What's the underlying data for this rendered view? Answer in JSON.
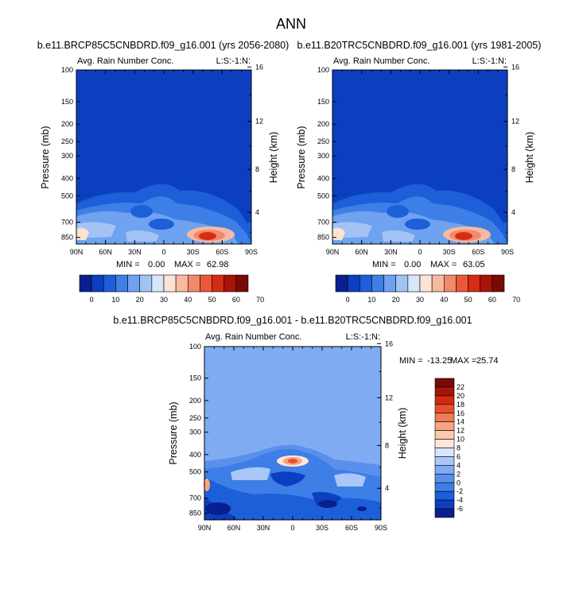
{
  "chart_data": {
    "type": "heatmap",
    "title": "ANN",
    "panels": [
      {
        "id": "p1",
        "title": "b.e11.BRCP85C5CNBDRD.f09_g16.001 (yrs 2056-2080)",
        "left_label": "Avg. Rain Number Conc.",
        "right_label": "L:S:-1:N:",
        "ylabel": "Pressure (mb)",
        "y2label": "Height (km)",
        "x_ticks": [
          "90N",
          "60N",
          "30N",
          "0",
          "30S",
          "60S",
          "90S"
        ],
        "y_ticks": [
          "100",
          "150",
          "200",
          "250",
          "300",
          "400",
          "500",
          "700",
          "850"
        ],
        "y2_ticks": [
          "16",
          "12",
          "8",
          "4"
        ],
        "min_label": "MIN =",
        "min_value": "0.00",
        "max_label": "MAX =",
        "max_value": "62.98",
        "colorbar_ticks": [
          "0",
          "10",
          "20",
          "30",
          "40",
          "50",
          "60",
          "70"
        ],
        "colorbar_orientation": "horizontal"
      },
      {
        "id": "p2",
        "title": "b.e11.B20TRC5CNBDRD.f09_g16.001 (yrs 1981-2005)",
        "left_label": "Avg. Rain Number Conc.",
        "right_label": "L:S:-1:N:",
        "ylabel": "Pressure (mb)",
        "y2label": "Height (km)",
        "x_ticks": [
          "90N",
          "60N",
          "30N",
          "0",
          "30S",
          "60S",
          "90S"
        ],
        "y_ticks": [
          "100",
          "150",
          "200",
          "250",
          "300",
          "400",
          "500",
          "700",
          "850"
        ],
        "y2_ticks": [
          "16",
          "12",
          "8",
          "4"
        ],
        "min_label": "MIN =",
        "min_value": "0.00",
        "max_label": "MAX =",
        "max_value": "63.05",
        "colorbar_ticks": [
          "0",
          "10",
          "20",
          "30",
          "40",
          "50",
          "60",
          "70"
        ],
        "colorbar_orientation": "horizontal"
      },
      {
        "id": "p3",
        "title": "b.e11.BRCP85C5CNBDRD.f09_g16.001 - b.e11.B20TRC5CNBDRD.f09_g16.001",
        "left_label": "Avg. Rain Number Conc.",
        "right_label": "L:S:-1:N:",
        "ylabel": "Pressure (mb)",
        "y2label": "Height (km)",
        "x_ticks": [
          "90N",
          "60N",
          "30N",
          "0",
          "30S",
          "60S",
          "90S"
        ],
        "y_ticks": [
          "100",
          "150",
          "200",
          "250",
          "300",
          "400",
          "500",
          "700",
          "850"
        ],
        "y2_ticks": [
          "16",
          "12",
          "8",
          "4"
        ],
        "min_label": "MIN =",
        "min_value": "-13.25",
        "max_label": "MAX =",
        "max_value": "25.74",
        "colorbar_ticks": [
          "22",
          "20",
          "18",
          "16",
          "14",
          "12",
          "10",
          "8",
          "6",
          "4",
          "2",
          "0",
          "-2",
          "-4",
          "-6"
        ],
        "colorbar_orientation": "vertical"
      }
    ]
  },
  "colors": {
    "abs_scale": [
      "#0a1f8f",
      "#0c3fc0",
      "#1c5fd9",
      "#3d7fe6",
      "#6fa2ef",
      "#a3c3f5",
      "#d8e6fb",
      "#fbe3d6",
      "#f8b9a0",
      "#f2896a",
      "#e9583a",
      "#d62c12",
      "#a8130a",
      "#7a0a06"
    ],
    "diff_scale": [
      "#0a1f8f",
      "#0c3fc0",
      "#1c5fd9",
      "#3d7fe6",
      "#5a90ec",
      "#7fabf2",
      "#a9c7f7",
      "#d7e6fc",
      "#fde6da",
      "#fbc9b0",
      "#f7a480",
      "#f17b55",
      "#e8502c",
      "#d22b10",
      "#a8130a",
      "#7a0a06"
    ],
    "field_base": "#0c3fc0"
  }
}
